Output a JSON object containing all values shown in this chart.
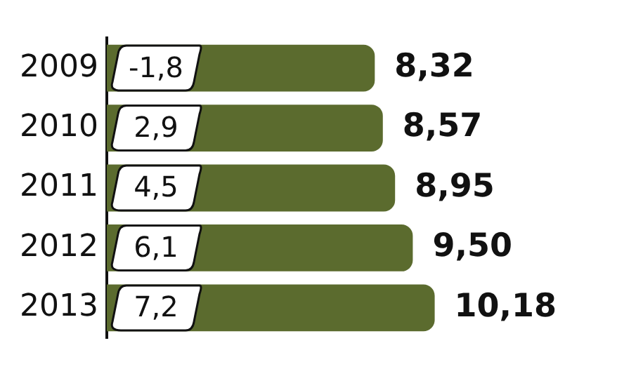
{
  "chart_data": {
    "type": "bar",
    "orientation": "horizontal",
    "categories": [
      "2009",
      "2010",
      "2011",
      "2012",
      "2013"
    ],
    "values": [
      8.32,
      8.57,
      8.95,
      9.5,
      10.18
    ],
    "color": "#5b6b2e",
    "value_labels": [
      "8,32",
      "8,57",
      "8,95",
      "9,50",
      "10,18"
    ],
    "tick_labels": "y",
    "annotations": [
      "-1,8",
      "2,9",
      "4,5",
      "6,1",
      "7,2"
    ]
  }
}
